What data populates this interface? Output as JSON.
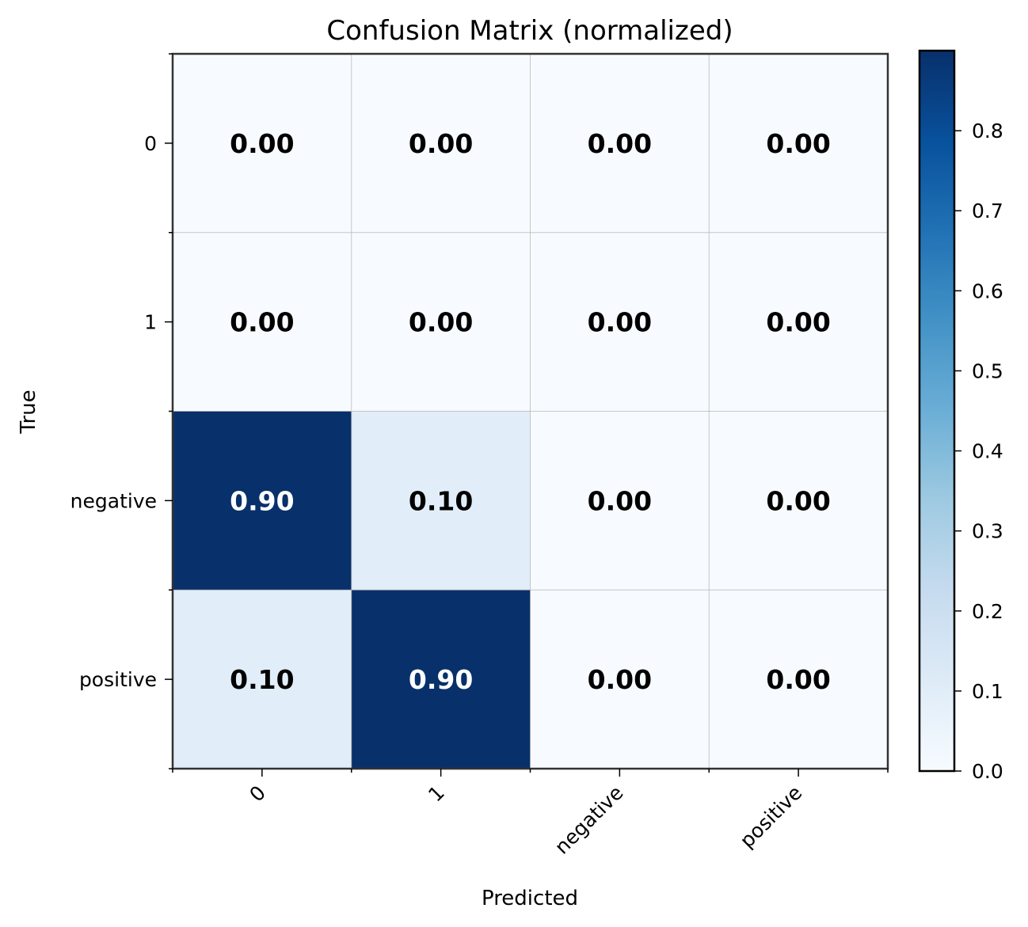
{
  "chart_data": {
    "type": "heatmap",
    "title": "Confusion Matrix (normalized)",
    "xlabel": "Predicted",
    "ylabel": "True",
    "x_categories": [
      "0",
      "1",
      "negative",
      "positive"
    ],
    "y_categories": [
      "0",
      "1",
      "negative",
      "positive"
    ],
    "values": [
      [
        0.0,
        0.0,
        0.0,
        0.0
      ],
      [
        0.0,
        0.0,
        0.0,
        0.0
      ],
      [
        0.9,
        0.1,
        0.0,
        0.0
      ],
      [
        0.1,
        0.9,
        0.0,
        0.0
      ]
    ],
    "cell_labels": [
      [
        "0.00",
        "0.00",
        "0.00",
        "0.00"
      ],
      [
        "0.00",
        "0.00",
        "0.00",
        "0.00"
      ],
      [
        "0.90",
        "0.10",
        "0.00",
        "0.00"
      ],
      [
        "0.10",
        "0.90",
        "0.00",
        "0.00"
      ]
    ],
    "colormap": "Blues",
    "colorbar": {
      "vmin": 0.0,
      "vmax": 0.9,
      "ticks": [
        0.0,
        0.1,
        0.2,
        0.3,
        0.4,
        0.5,
        0.6,
        0.7,
        0.8
      ],
      "tick_labels": [
        "0.0",
        "0.1",
        "0.2",
        "0.3",
        "0.4",
        "0.5",
        "0.6",
        "0.7",
        "0.8"
      ]
    },
    "grid": true,
    "colors": {
      "low": "#f7fbff",
      "high": "#08306b",
      "text_dark": "#000000",
      "text_light": "#ffffff",
      "grid": "#b0b0b0",
      "frame": "#333333"
    }
  }
}
